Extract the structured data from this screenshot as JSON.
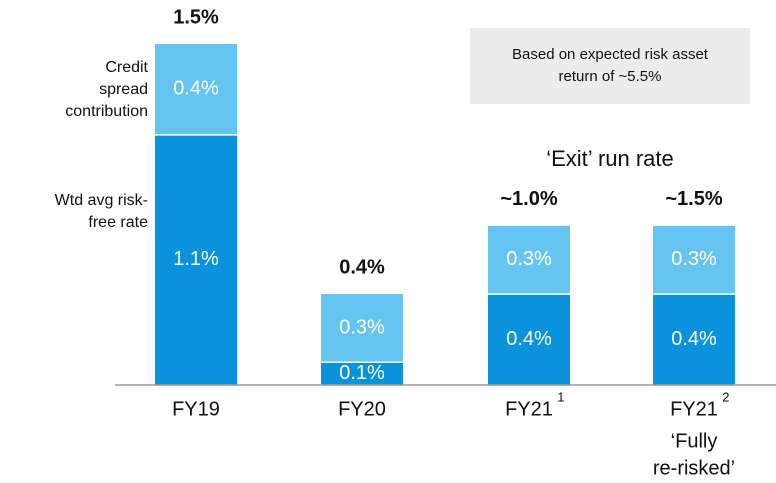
{
  "chart_data": {
    "type": "stacked_bar",
    "categories": [
      "FY19",
      "FY20",
      "FY21",
      "FY21"
    ],
    "category_superscripts": [
      null,
      null,
      "1",
      "2"
    ],
    "category_caption": [
      "‘Fully",
      "re-risked’"
    ],
    "series": [
      {
        "name": "Wtd avg risk-free rate",
        "color": "#0a93dc",
        "values": [
          1.1,
          0.1,
          0.4,
          0.4
        ],
        "value_labels": [
          "1.1%",
          "0.1%",
          "0.4%",
          "0.4%"
        ]
      },
      {
        "name": "Credit spread contribution",
        "color": "#66c4f0",
        "values": [
          0.4,
          0.3,
          0.3,
          0.3
        ],
        "value_labels": [
          "0.4%",
          "0.3%",
          "0.3%",
          "0.3%"
        ]
      }
    ],
    "total_labels": [
      "1.5%",
      "0.4%",
      "~1.0%",
      "~1.5%"
    ],
    "annotations": [
      "Based on expected risk asset return of ~5.5%",
      "‘Exit’ run rate"
    ]
  }
}
